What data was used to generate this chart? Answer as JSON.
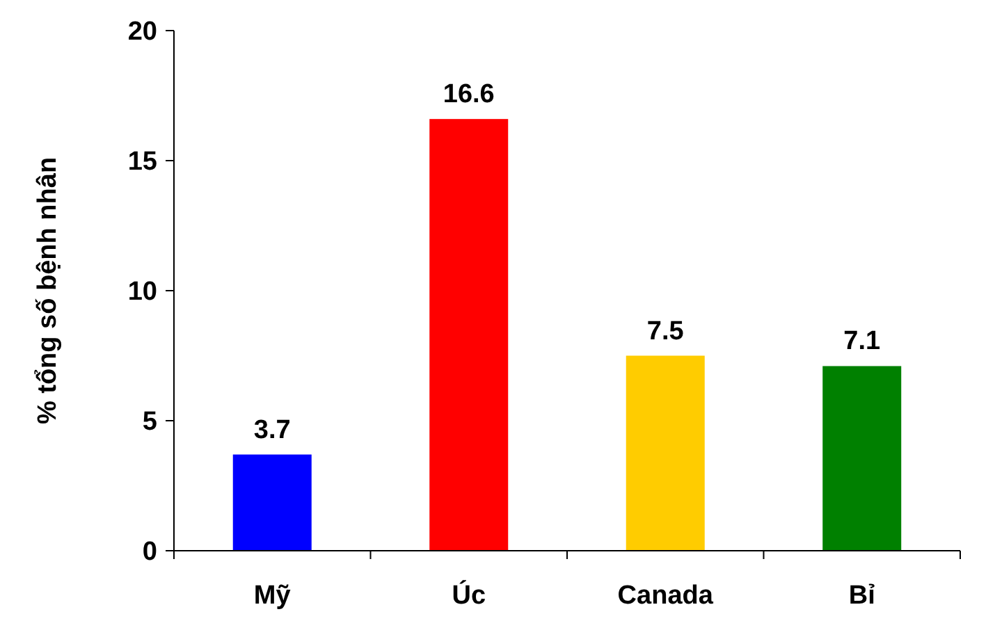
{
  "chart_data": {
    "type": "bar",
    "ylabel": "% tổng số bệnh nhân",
    "categories": [
      "Mỹ",
      "Úc",
      "Canada",
      "Bỉ"
    ],
    "values": [
      3.7,
      16.6,
      7.5,
      7.1
    ],
    "colors": [
      "#0000ff",
      "#ff0000",
      "#ffcc00",
      "#008000"
    ],
    "ylim": [
      0,
      20
    ],
    "yticks": [
      0,
      5,
      10,
      15,
      20
    ],
    "data_labels": true
  }
}
